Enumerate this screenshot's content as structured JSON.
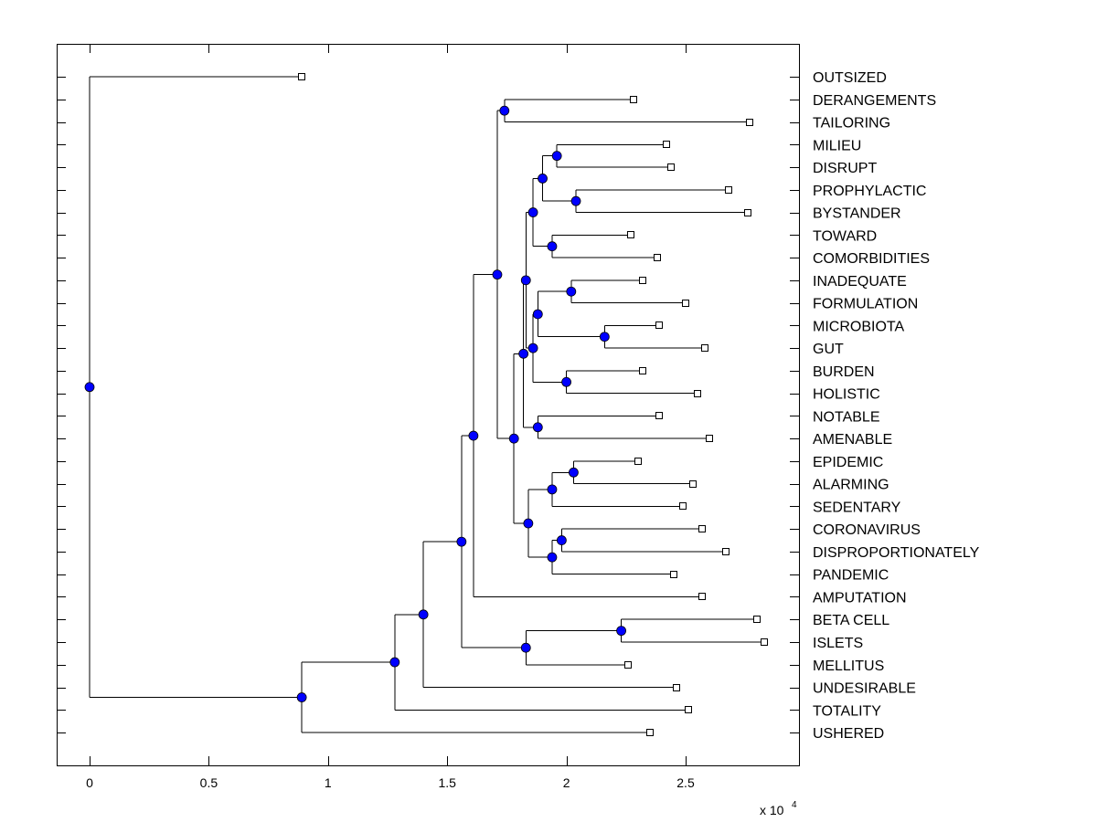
{
  "chart_data": {
    "type": "dendrogram",
    "title": "",
    "xlabel": "",
    "x_multiplier_label": "x 10",
    "x_multiplier_exp": "4",
    "xlim": [
      -0.14,
      2.97
    ],
    "xticks": [
      "0",
      "0.5",
      "1",
      "1.5",
      "2",
      "2.5"
    ],
    "xtick_values": [
      0,
      0.5,
      1,
      1.5,
      2,
      2.5
    ],
    "node_color": "#0000ff",
    "leaves": [
      "OUTSIZED",
      "DERANGEMENTS",
      "TAILORING",
      "MILIEU",
      "DISRUPT",
      "PROPHYLACTIC",
      "BYSTANDER",
      "TOWARD",
      "COMORBIDITIES",
      "INADEQUATE",
      "FORMULATION",
      "MICROBIOTA",
      "GUT",
      "BURDEN",
      "HOLISTIC",
      "NOTABLE",
      "AMENABLE",
      "EPIDEMIC",
      "ALARMING",
      "SEDENTARY",
      "CORONAVIRUS",
      "DISPROPORTIONATELY",
      "PANDEMIC",
      "AMPUTATION",
      "BETA CELL",
      "ISLETS",
      "MELLITUS",
      "UNDESIRABLE",
      "TOTALITY",
      "USHERED"
    ],
    "leaf_values": [
      0.89,
      2.28,
      2.77,
      2.42,
      2.44,
      2.68,
      2.76,
      2.27,
      2.38,
      2.32,
      2.5,
      2.39,
      2.58,
      2.32,
      2.55,
      2.39,
      2.6,
      2.3,
      2.53,
      2.49,
      2.57,
      2.67,
      2.45,
      2.57,
      2.8,
      2.83,
      2.26,
      2.46,
      2.51,
      2.35
    ],
    "tree": {
      "h": 0,
      "c": [
        0,
        {
          "h": 0.89,
          "c": [
            {
              "h": 1.28,
              "c": [
                {
                  "h": 1.4,
                  "c": [
                    {
                      "h": 1.56,
                      "c": [
                        {
                          "h": 1.61,
                          "c": [
                            {
                              "h": 1.71,
                              "c": [
                                {
                                  "h": 1.74,
                                  "c": [
                                    1,
                                    2
                                  ]
                                },
                                {
                                  "h": 1.78,
                                  "c": [
                                    {
                                      "h": 1.82,
                                      "c": [
                                        {
                                          "h": 1.83,
                                          "c": [
                                            {
                                              "h": 1.86,
                                              "c": [
                                                {
                                                  "h": 1.9,
                                                  "c": [
                                                    {
                                                      "h": 1.96,
                                                      "c": [
                                                        3,
                                                        4
                                                      ]
                                                    },
                                                    {
                                                      "h": 2.04,
                                                      "c": [
                                                        5,
                                                        6
                                                      ]
                                                    }
                                                  ]
                                                },
                                                {
                                                  "h": 1.94,
                                                  "c": [
                                                    7,
                                                    8
                                                  ]
                                                }
                                              ]
                                            },
                                            {
                                              "h": 1.86,
                                              "c": [
                                                {
                                                  "h": 1.88,
                                                  "c": [
                                                    {
                                                      "h": 2.02,
                                                      "c": [
                                                        9,
                                                        10
                                                      ]
                                                    },
                                                    {
                                                      "h": 2.16,
                                                      "c": [
                                                        11,
                                                        12
                                                      ]
                                                    }
                                                  ]
                                                },
                                                {
                                                  "h": 2.0,
                                                  "c": [
                                                    13,
                                                    14
                                                  ]
                                                }
                                              ]
                                            }
                                          ]
                                        },
                                        {
                                          "h": 1.88,
                                          "c": [
                                            15,
                                            16
                                          ]
                                        }
                                      ]
                                    },
                                    {
                                      "h": 1.84,
                                      "c": [
                                        {
                                          "h": 1.94,
                                          "c": [
                                            {
                                              "h": 2.03,
                                              "c": [
                                                17,
                                                18
                                              ]
                                            },
                                            19
                                          ]
                                        },
                                        {
                                          "h": 1.94,
                                          "c": [
                                            {
                                              "h": 1.98,
                                              "c": [
                                                20,
                                                21
                                              ]
                                            },
                                            22
                                          ]
                                        }
                                      ]
                                    }
                                  ]
                                }
                              ]
                            },
                            23
                          ]
                        },
                        {
                          "h": 1.83,
                          "c": [
                            {
                              "h": 2.23,
                              "c": [
                                24,
                                25
                              ]
                            },
                            26
                          ]
                        }
                      ]
                    },
                    27
                  ]
                },
                28
              ]
            },
            29
          ]
        }
      ]
    }
  }
}
